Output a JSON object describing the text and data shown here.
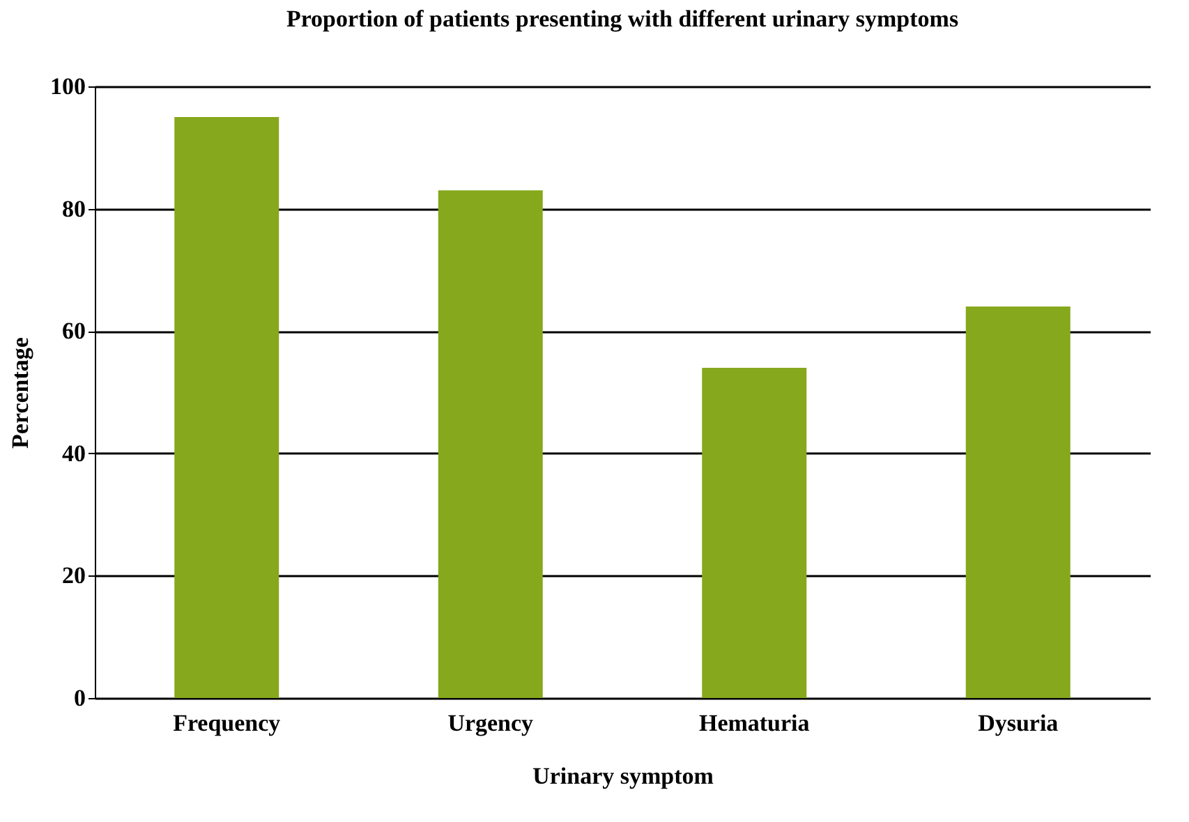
{
  "chart_data": {
    "type": "bar",
    "title": "Proportion of patients presenting with different urinary symptoms",
    "xlabel": "Urinary symptom",
    "ylabel": "Percentage",
    "categories": [
      "Frequency",
      "Urgency",
      "Hematuria",
      "Dysuria"
    ],
    "values": [
      95,
      83,
      54,
      64
    ],
    "color": "#86a81c",
    "ylim": [
      0,
      100
    ],
    "yticks": [
      0,
      20,
      40,
      60,
      80,
      100
    ],
    "grid": "y"
  }
}
